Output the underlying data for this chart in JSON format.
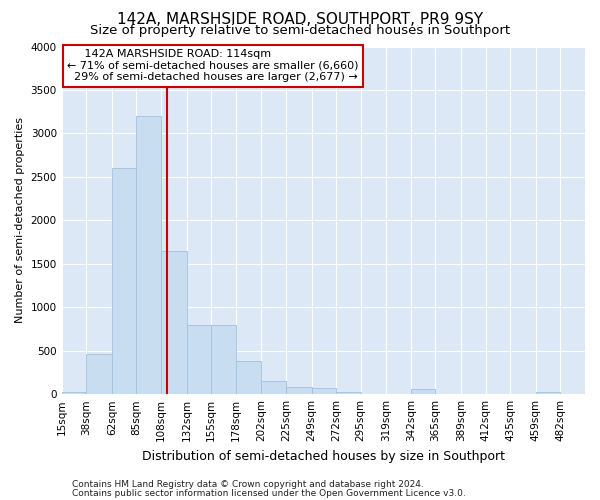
{
  "title": "142A, MARSHSIDE ROAD, SOUTHPORT, PR9 9SY",
  "subtitle": "Size of property relative to semi-detached houses in Southport",
  "xlabel": "Distribution of semi-detached houses by size in Southport",
  "ylabel": "Number of semi-detached properties",
  "footer1": "Contains HM Land Registry data © Crown copyright and database right 2024.",
  "footer2": "Contains public sector information licensed under the Open Government Licence v3.0.",
  "property_label": "142A MARSHSIDE ROAD: 114sqm",
  "smaller_pct": "71%",
  "smaller_count": "6,660",
  "larger_pct": "29%",
  "larger_count": "2,677",
  "bin_labels": [
    "15sqm",
    "38sqm",
    "62sqm",
    "85sqm",
    "108sqm",
    "132sqm",
    "155sqm",
    "178sqm",
    "202sqm",
    "225sqm",
    "249sqm",
    "272sqm",
    "295sqm",
    "319sqm",
    "342sqm",
    "365sqm",
    "389sqm",
    "412sqm",
    "435sqm",
    "459sqm",
    "482sqm"
  ],
  "bin_edges": [
    15,
    38,
    62,
    85,
    108,
    132,
    155,
    178,
    202,
    225,
    249,
    272,
    295,
    319,
    342,
    365,
    389,
    412,
    435,
    459,
    482,
    505
  ],
  "bar_heights": [
    30,
    460,
    2600,
    3200,
    1650,
    800,
    800,
    380,
    155,
    80,
    70,
    30,
    0,
    0,
    60,
    0,
    0,
    0,
    0,
    30,
    0
  ],
  "bar_color": "#c8ddf0",
  "bar_edge_color": "#a0c0e0",
  "vline_color": "#cc0000",
  "vline_x": 114,
  "annotation_box_color": "#cc0000",
  "ylim": [
    0,
    4000
  ],
  "yticks": [
    0,
    500,
    1000,
    1500,
    2000,
    2500,
    3000,
    3500,
    4000
  ],
  "bg_color": "#dce8f5",
  "grid_color": "#ffffff",
  "title_fontsize": 11,
  "subtitle_fontsize": 9.5,
  "ylabel_fontsize": 8,
  "xlabel_fontsize": 9,
  "tick_fontsize": 7.5,
  "annotation_fontsize": 8,
  "footer_fontsize": 6.5
}
